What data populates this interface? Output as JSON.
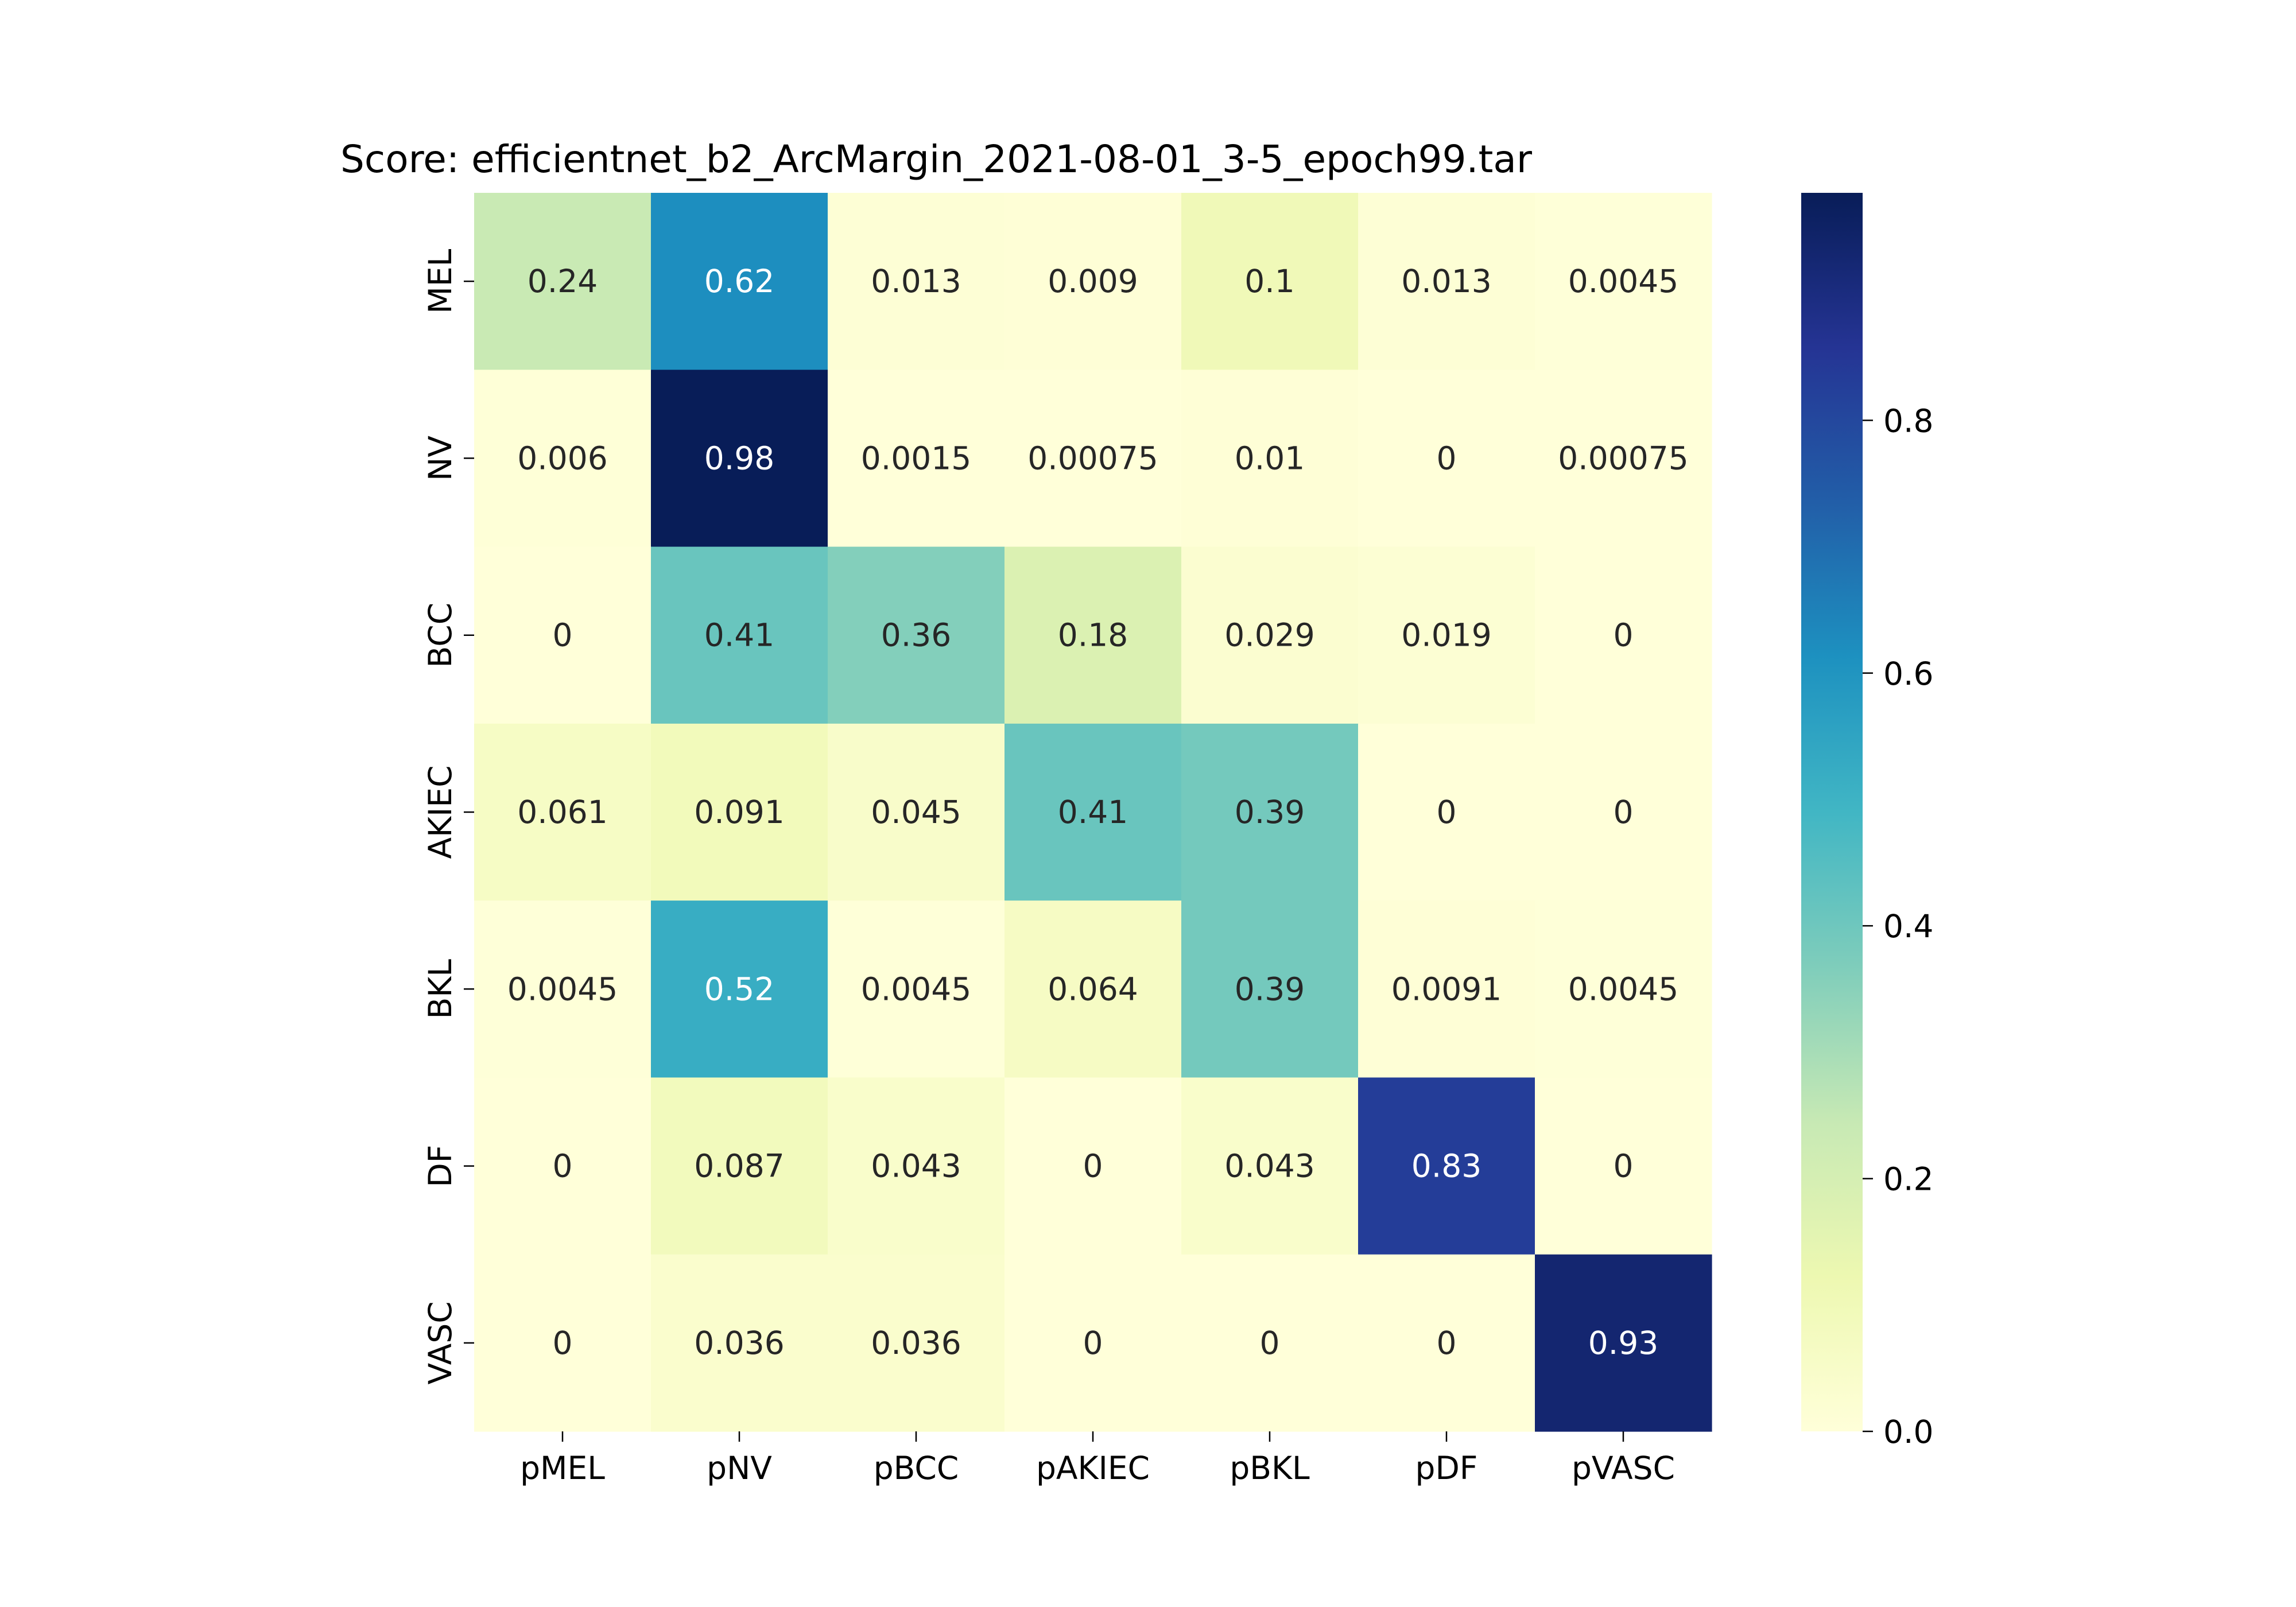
{
  "chart_data": {
    "type": "heatmap",
    "title": "Score: efficientnet_b2_ArcMargin_2021-08-01_3-5_epoch99.tar",
    "xlabel": "",
    "ylabel": "",
    "x_categories": [
      "pMEL",
      "pNV",
      "pBCC",
      "pAKIEC",
      "pBKL",
      "pDF",
      "pVASC"
    ],
    "y_categories": [
      "MEL",
      "NV",
      "BCC",
      "AKIEC",
      "BKL",
      "DF",
      "VASC"
    ],
    "values": [
      [
        0.24,
        0.62,
        0.013,
        0.009,
        0.1,
        0.013,
        0.0045
      ],
      [
        0.006,
        0.98,
        0.0015,
        0.00075,
        0.01,
        0,
        0.00075
      ],
      [
        0,
        0.41,
        0.36,
        0.18,
        0.029,
        0.019,
        0
      ],
      [
        0.061,
        0.091,
        0.045,
        0.41,
        0.39,
        0,
        0
      ],
      [
        0.0045,
        0.52,
        0.0045,
        0.064,
        0.39,
        0.0091,
        0.0045
      ],
      [
        0,
        0.087,
        0.043,
        0,
        0.043,
        0.83,
        0
      ],
      [
        0,
        0.036,
        0.036,
        0,
        0,
        0,
        0.93
      ]
    ],
    "value_labels": [
      [
        "0.24",
        "0.62",
        "0.013",
        "0.009",
        "0.1",
        "0.013",
        "0.0045"
      ],
      [
        "0.006",
        "0.98",
        "0.0015",
        "0.00075",
        "0.01",
        "0",
        "0.00075"
      ],
      [
        "0",
        "0.41",
        "0.36",
        "0.18",
        "0.029",
        "0.019",
        "0"
      ],
      [
        "0.061",
        "0.091",
        "0.045",
        "0.41",
        "0.39",
        "0",
        "0"
      ],
      [
        "0.0045",
        "0.52",
        "0.0045",
        "0.064",
        "0.39",
        "0.0091",
        "0.0045"
      ],
      [
        "0",
        "0.087",
        "0.043",
        "0",
        "0.043",
        "0.83",
        "0"
      ],
      [
        "0",
        "0.036",
        "0.036",
        "0",
        "0",
        "0",
        "0.93"
      ]
    ],
    "colormap": "YlGnBu",
    "colorbar": {
      "range": [
        0.0,
        0.98
      ],
      "ticks": [
        0.0,
        0.2,
        0.4,
        0.6,
        0.8
      ],
      "tick_labels": [
        "0.0",
        "0.2",
        "0.4",
        "0.6",
        "0.8"
      ]
    },
    "grid": false,
    "colors": {
      "dark_text": "#262626",
      "light_text": "#ffffff",
      "colormap_stops": [
        "#ffffd9",
        "#edf8b1",
        "#c7e9b4",
        "#7fcdbb",
        "#41b6c4",
        "#1d91c0",
        "#225ea8",
        "#253494",
        "#081d58"
      ]
    }
  }
}
